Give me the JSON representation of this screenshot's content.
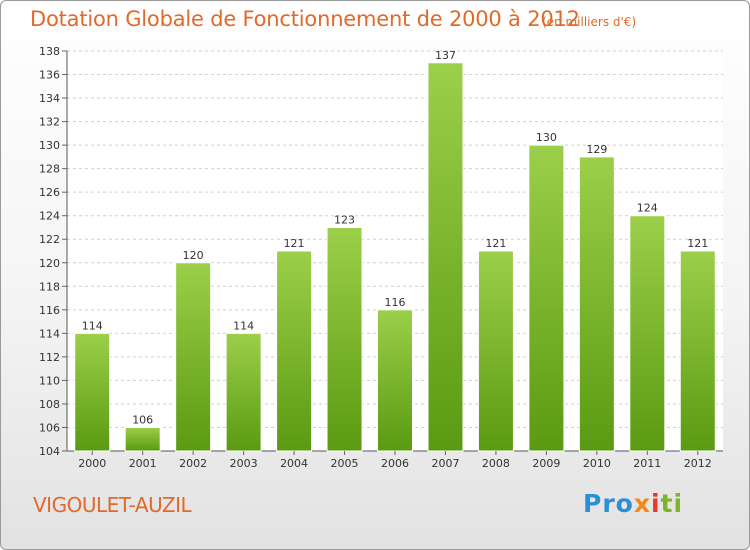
{
  "header": {
    "title": "Dotation Globale de Fonctionnement de 2000 à 2012",
    "subtitle": "(en milliers d'€)"
  },
  "footer": {
    "commune": "VIGOULET-AUZIL",
    "logo": [
      "Pro",
      "x",
      "i",
      "ti"
    ]
  },
  "colors": {
    "title": "#e06a2b",
    "bar_top": "#9ccf4a",
    "bar_bottom": "#5a9a12"
  },
  "chart_data": {
    "type": "bar",
    "title": "Dotation Globale de Fonctionnement de 2000 à 2012",
    "subtitle": "(en milliers d'€)",
    "categories": [
      "2000",
      "2001",
      "2002",
      "2003",
      "2004",
      "2005",
      "2006",
      "2007",
      "2008",
      "2009",
      "2010",
      "2011",
      "2012"
    ],
    "values": [
      114,
      106,
      120,
      114,
      121,
      123,
      116,
      137,
      121,
      130,
      129,
      124,
      121
    ],
    "ylim": [
      104,
      138
    ],
    "yticks": [
      104,
      106,
      108,
      110,
      112,
      114,
      116,
      118,
      120,
      122,
      124,
      126,
      128,
      130,
      132,
      134,
      136,
      138
    ],
    "grid": true,
    "data_labels": true
  }
}
